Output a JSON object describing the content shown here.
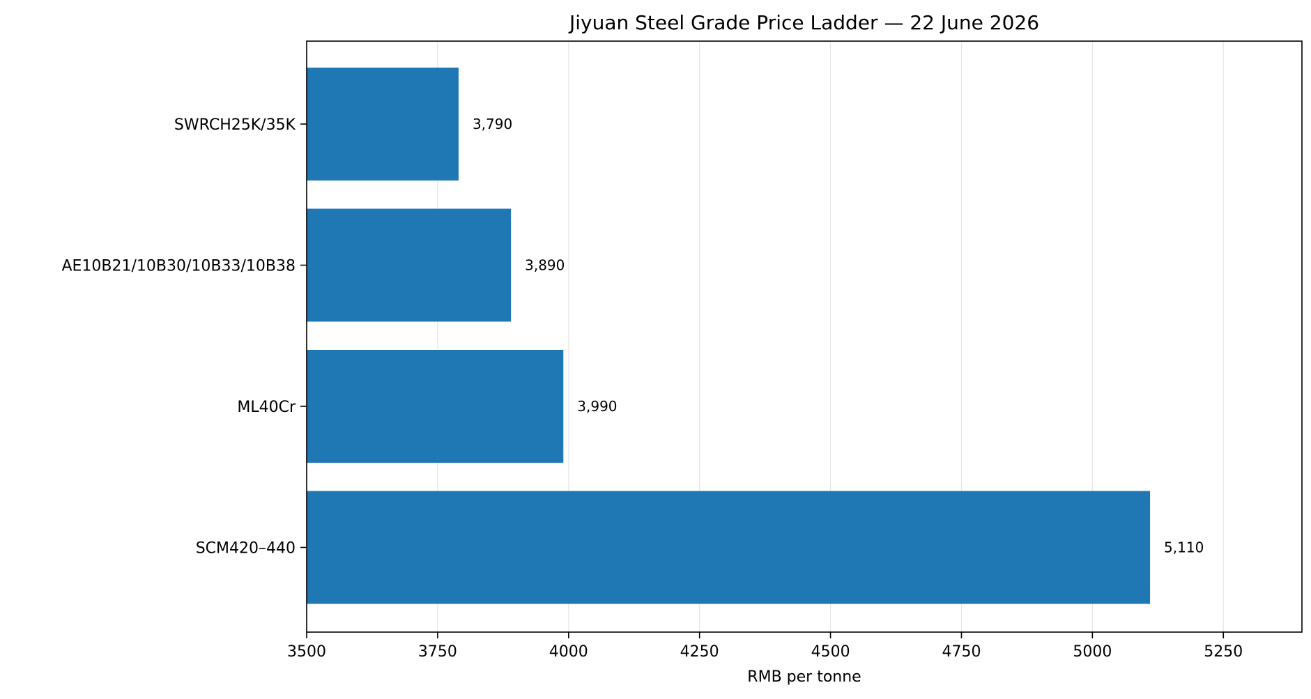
{
  "chart_data": {
    "type": "bar",
    "orientation": "horizontal",
    "title": "Jiyuan Steel Grade Price Ladder — 22 June 2026",
    "xlabel": "RMB per tonne",
    "ylabel": "",
    "categories": [
      "SWRCH25K/35K",
      "AE10B21/10B30/10B33/10B38",
      "ML40Cr",
      "SCM420–440"
    ],
    "values": [
      3790,
      3890,
      3990,
      5110
    ],
    "value_labels": [
      "3,790",
      "3,890",
      "3,990",
      "5,110"
    ],
    "xlim": [
      3500,
      5400
    ],
    "xticks": [
      3500,
      3750,
      4000,
      4250,
      4500,
      4750,
      5000,
      5250
    ],
    "xtick_labels": [
      "3500",
      "3750",
      "4000",
      "4250",
      "4500",
      "4750",
      "5000",
      "5250"
    ],
    "grid": "x-axis vertical gridlines",
    "bar_color": "#1f77b4",
    "grid_color": "#e5e5e5",
    "legend": "none"
  }
}
